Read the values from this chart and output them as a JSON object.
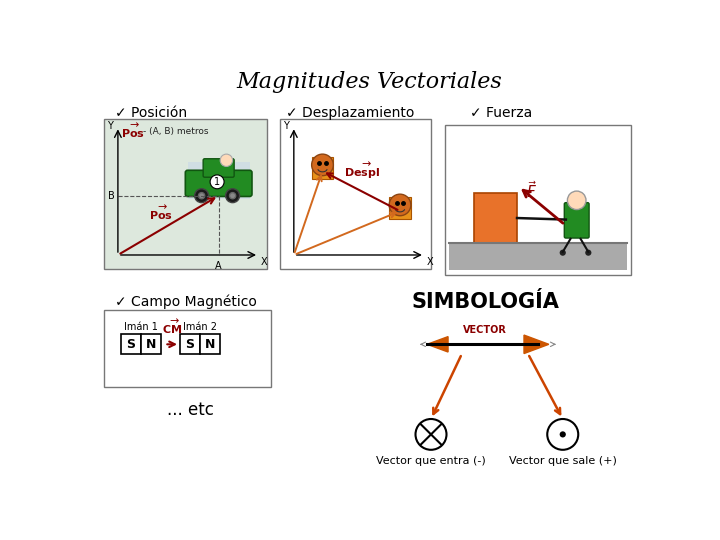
{
  "title": "Magnitudes Vectoriales",
  "title_fontsize": 16,
  "background_color": "#ffffff",
  "labels": {
    "posicion": "✓ Posición",
    "desplazamiento": "✓ Desplazamiento",
    "fuerza": "✓ Fuerza",
    "campo": "✓ Campo Magnético",
    "simbologia": "SIMBOLOGÍA",
    "etc": "... etc",
    "vector_entra": "Vector que entra (-)",
    "vector_sale": "Vector que sale (+)",
    "vector_label": "VECTOR"
  },
  "colors": {
    "dark_red": "#8B0000",
    "orange_arrow": "#CC5500",
    "orange_red": "#CC4400",
    "orange_fig": "#D2691E",
    "text": "#000000",
    "green_car": "#228B22",
    "green_dark": "#115511",
    "gray_ground": "#999999",
    "orange_box": "#E8722A",
    "green_person": "#228B22"
  }
}
